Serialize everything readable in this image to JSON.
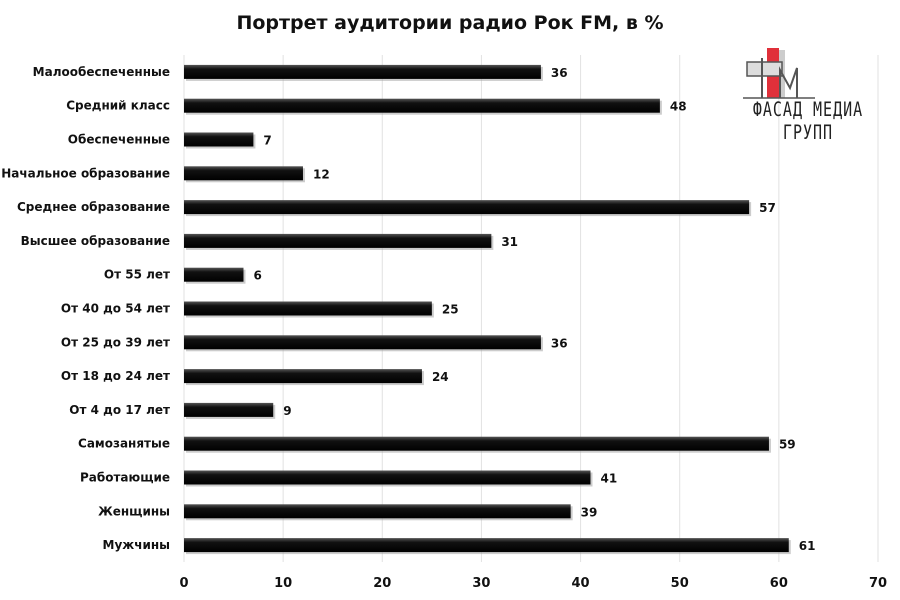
{
  "chart_data": {
    "type": "bar",
    "orientation": "horizontal",
    "title": "Портрет аудитории радио Рок FM, в %",
    "categories": [
      "Малообеспеченные",
      "Средний класс",
      "Обеспеченные",
      "Начальное образование",
      "Среднее образование",
      "Высшее образование",
      "От 55 лет",
      "От 40 до 54 лет",
      "От 25 до 39 лет",
      "От 18 до 24 лет",
      "От 4 до 17 лет",
      "Самозанятые",
      "Работающие",
      "Женщины",
      "Мужчины"
    ],
    "values": [
      36,
      48,
      7,
      12,
      57,
      31,
      6,
      25,
      36,
      24,
      9,
      59,
      41,
      39,
      61
    ],
    "xlim": [
      0,
      70
    ],
    "xticks": [
      0,
      10,
      20,
      30,
      40,
      50,
      60,
      70
    ],
    "grid": true,
    "data_labels": true,
    "bar_color": "#111111",
    "xlabel": "",
    "ylabel": ""
  },
  "logo": {
    "text": "ФАСАД МЕДИА ГРУПП",
    "accent": "#e0303a"
  }
}
